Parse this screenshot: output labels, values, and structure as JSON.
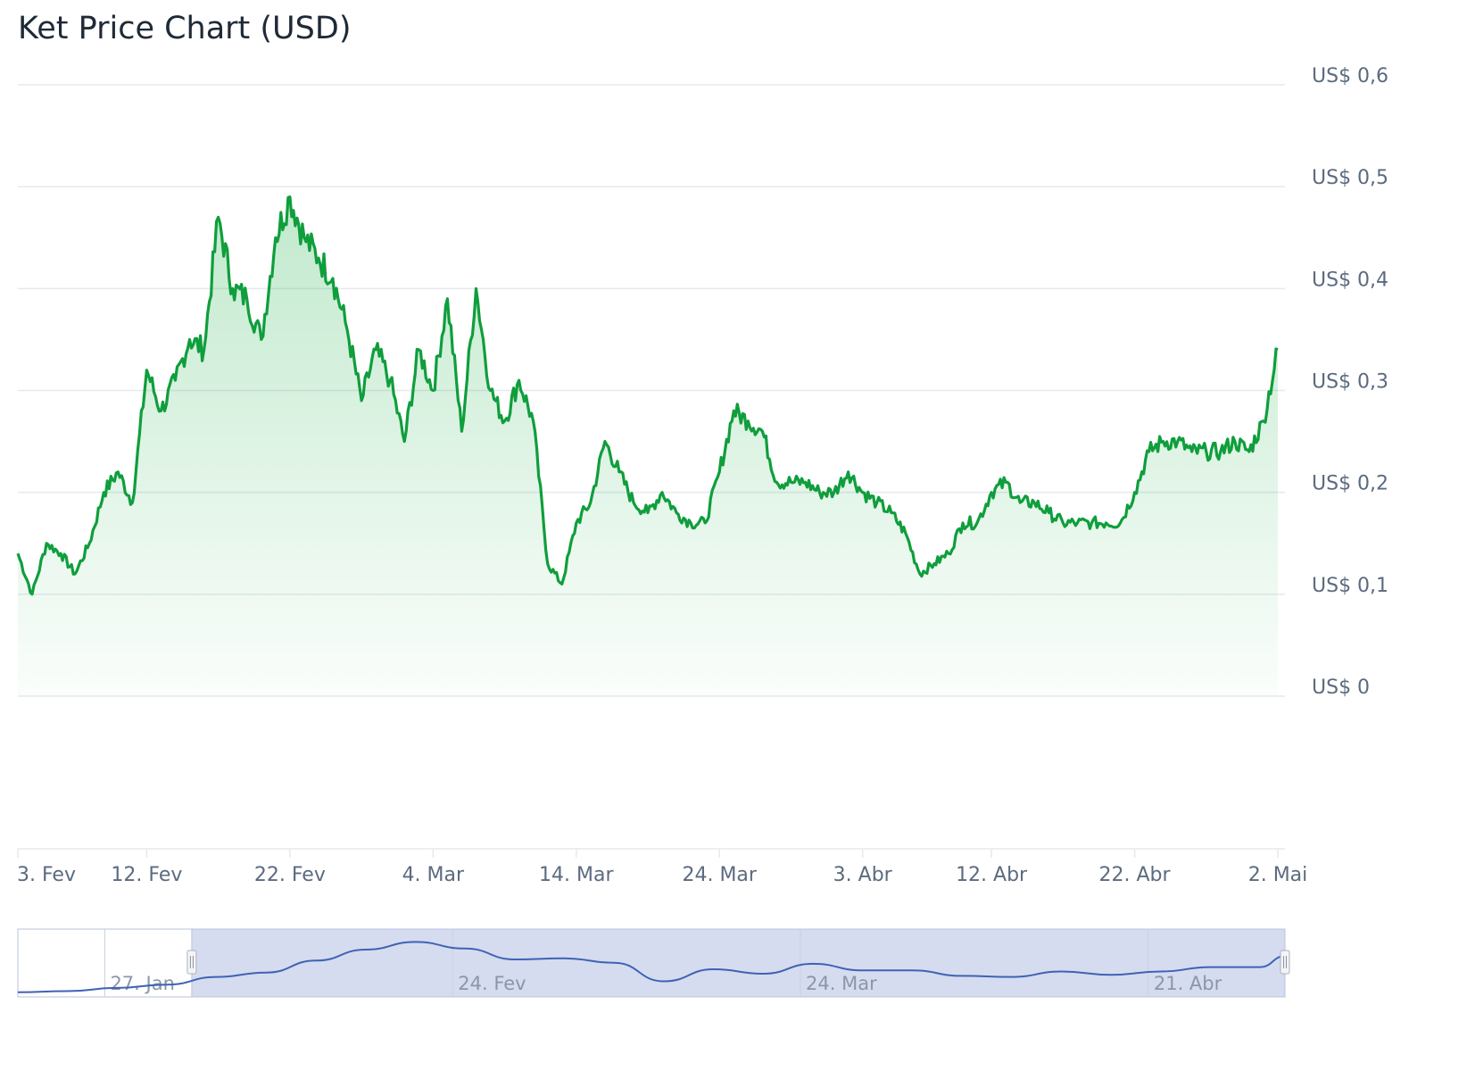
{
  "chart_title": "Ket Price Chart (USD)",
  "colors": {
    "line": "#0f9e3c",
    "area_top": "#22b14c",
    "grid": "#e6e9ee",
    "navigator_fill": "#d5dcef",
    "navigator_line": "#3f62b5",
    "navigator_border": "#b9c3de"
  },
  "chart_data": {
    "type": "area",
    "title": "Ket Price Chart (USD)",
    "ylabel": "",
    "xlabel": "",
    "ylim": [
      0,
      0.6
    ],
    "grid": true,
    "y_ticks": [
      "US$ 0,6",
      "US$ 0,5",
      "US$ 0,4",
      "US$ 0,3",
      "US$ 0,2",
      "US$ 0,1",
      "US$ 0"
    ],
    "y_tick_values": [
      0.6,
      0.5,
      0.4,
      0.3,
      0.2,
      0.1,
      0
    ],
    "x_ticks": [
      "3. Fev",
      "12. Fev",
      "22. Fev",
      "4. Mar",
      "14. Mar",
      "24. Mar",
      "3. Abr",
      "12. Abr",
      "22. Abr",
      "2. Mai"
    ],
    "x_tick_dates": [
      "2025-02-03",
      "2025-02-12",
      "2025-02-22",
      "2025-03-04",
      "2025-03-14",
      "2025-03-24",
      "2025-04-03",
      "2025-04-12",
      "2025-04-22",
      "2025-05-02"
    ],
    "x_range": [
      "2025-02-03",
      "2025-05-02"
    ],
    "series": [
      {
        "values": [
          [
            "2025-02-03",
            0.14
          ],
          [
            "2025-02-04",
            0.1
          ],
          [
            "2025-02-05",
            0.15
          ],
          [
            "2025-02-06",
            0.14
          ],
          [
            "2025-02-07",
            0.12
          ],
          [
            "2025-02-08",
            0.15
          ],
          [
            "2025-02-09",
            0.2
          ],
          [
            "2025-02-10",
            0.22
          ],
          [
            "2025-02-11",
            0.19
          ],
          [
            "2025-02-12",
            0.32
          ],
          [
            "2025-02-13",
            0.28
          ],
          [
            "2025-02-14",
            0.31
          ],
          [
            "2025-02-15",
            0.35
          ],
          [
            "2025-02-16",
            0.34
          ],
          [
            "2025-02-17",
            0.47
          ],
          [
            "2025-02-18",
            0.4
          ],
          [
            "2025-02-19",
            0.39
          ],
          [
            "2025-02-20",
            0.35
          ],
          [
            "2025-02-21",
            0.45
          ],
          [
            "2025-02-22",
            0.49
          ],
          [
            "2025-02-23",
            0.45
          ],
          [
            "2025-02-24",
            0.43
          ],
          [
            "2025-02-25",
            0.41
          ],
          [
            "2025-02-26",
            0.36
          ],
          [
            "2025-02-27",
            0.29
          ],
          [
            "2025-02-28",
            0.34
          ],
          [
            "2025-03-01",
            0.31
          ],
          [
            "2025-03-02",
            0.25
          ],
          [
            "2025-03-03",
            0.34
          ],
          [
            "2025-03-04",
            0.3
          ],
          [
            "2025-03-05",
            0.39
          ],
          [
            "2025-03-06",
            0.26
          ],
          [
            "2025-03-07",
            0.4
          ],
          [
            "2025-03-08",
            0.3
          ],
          [
            "2025-03-09",
            0.27
          ],
          [
            "2025-03-10",
            0.31
          ],
          [
            "2025-03-11",
            0.27
          ],
          [
            "2025-03-12",
            0.13
          ],
          [
            "2025-03-13",
            0.11
          ],
          [
            "2025-03-14",
            0.17
          ],
          [
            "2025-03-15",
            0.19
          ],
          [
            "2025-03-16",
            0.25
          ],
          [
            "2025-03-17",
            0.22
          ],
          [
            "2025-03-18",
            0.19
          ],
          [
            "2025-03-19",
            0.18
          ],
          [
            "2025-03-20",
            0.2
          ],
          [
            "2025-03-21",
            0.18
          ],
          [
            "2025-03-22",
            0.17
          ],
          [
            "2025-03-23",
            0.17
          ],
          [
            "2025-03-24",
            0.22
          ],
          [
            "2025-03-25",
            0.28
          ],
          [
            "2025-03-26",
            0.27
          ],
          [
            "2025-03-27",
            0.26
          ],
          [
            "2025-03-28",
            0.21
          ],
          [
            "2025-03-29",
            0.21
          ],
          [
            "2025-03-30",
            0.21
          ],
          [
            "2025-03-31",
            0.2
          ],
          [
            "2025-04-01",
            0.2
          ],
          [
            "2025-04-02",
            0.22
          ],
          [
            "2025-04-03",
            0.2
          ],
          [
            "2025-04-04",
            0.19
          ],
          [
            "2025-04-05",
            0.18
          ],
          [
            "2025-04-06",
            0.16
          ],
          [
            "2025-04-07",
            0.12
          ],
          [
            "2025-04-08",
            0.13
          ],
          [
            "2025-04-09",
            0.14
          ],
          [
            "2025-04-10",
            0.17
          ],
          [
            "2025-04-11",
            0.17
          ],
          [
            "2025-04-12",
            0.2
          ],
          [
            "2025-04-13",
            0.21
          ],
          [
            "2025-04-14",
            0.19
          ],
          [
            "2025-04-15",
            0.19
          ],
          [
            "2025-04-16",
            0.18
          ],
          [
            "2025-04-17",
            0.17
          ],
          [
            "2025-04-18",
            0.17
          ],
          [
            "2025-04-19",
            0.17
          ],
          [
            "2025-04-20",
            0.17
          ],
          [
            "2025-04-21",
            0.17
          ],
          [
            "2025-04-22",
            0.2
          ],
          [
            "2025-04-23",
            0.24
          ],
          [
            "2025-04-24",
            0.25
          ],
          [
            "2025-04-25",
            0.25
          ],
          [
            "2025-04-26",
            0.24
          ],
          [
            "2025-04-27",
            0.24
          ],
          [
            "2025-04-28",
            0.24
          ],
          [
            "2025-04-29",
            0.25
          ],
          [
            "2025-04-30",
            0.24
          ],
          [
            "2025-05-01",
            0.27
          ],
          [
            "2025-05-02",
            0.34
          ]
        ]
      }
    ]
  },
  "navigator": {
    "labels": [
      "27. Jan",
      "24. Fev",
      "24. Mar",
      "21. Abr"
    ],
    "label_dates": [
      "2025-01-27",
      "2025-02-24",
      "2025-03-24",
      "2025-04-21"
    ],
    "range": [
      "2025-01-20",
      "2025-05-02"
    ],
    "selected_range": [
      "2025-02-03",
      "2025-05-02"
    ],
    "values": [
      [
        "2025-01-20",
        0.01
      ],
      [
        "2025-01-24",
        0.02
      ],
      [
        "2025-01-28",
        0.05
      ],
      [
        "2025-02-01",
        0.08
      ],
      [
        "2025-02-05",
        0.15
      ],
      [
        "2025-02-09",
        0.19
      ],
      [
        "2025-02-13",
        0.3
      ],
      [
        "2025-02-17",
        0.4
      ],
      [
        "2025-02-21",
        0.47
      ],
      [
        "2025-02-25",
        0.41
      ],
      [
        "2025-03-01",
        0.31
      ],
      [
        "2025-03-05",
        0.32
      ],
      [
        "2025-03-09",
        0.28
      ],
      [
        "2025-03-13",
        0.11
      ],
      [
        "2025-03-17",
        0.22
      ],
      [
        "2025-03-21",
        0.18
      ],
      [
        "2025-03-25",
        0.27
      ],
      [
        "2025-03-29",
        0.21
      ],
      [
        "2025-04-02",
        0.21
      ],
      [
        "2025-04-06",
        0.16
      ],
      [
        "2025-04-10",
        0.15
      ],
      [
        "2025-04-14",
        0.2
      ],
      [
        "2025-04-18",
        0.17
      ],
      [
        "2025-04-22",
        0.2
      ],
      [
        "2025-04-26",
        0.24
      ],
      [
        "2025-04-30",
        0.24
      ],
      [
        "2025-05-02",
        0.34
      ]
    ]
  }
}
